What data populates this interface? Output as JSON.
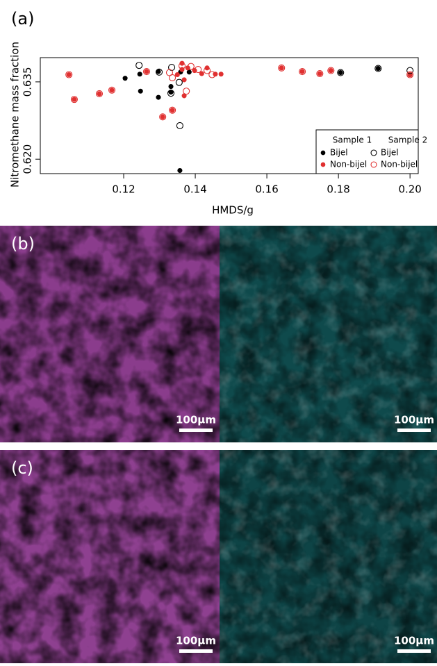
{
  "chart_data": {
    "type": "scatter",
    "panel_label": "(a)",
    "x_label": "HMDS/g",
    "y_label": "Nitromethane mass fraction",
    "xlim": [
      0.0967,
      0.2023
    ],
    "ylim": [
      0.6172,
      0.6397
    ],
    "xticks": [
      0.12,
      0.14,
      0.16,
      0.18,
      {
        "value": 0.2,
        "label": "0.20"
      }
    ],
    "yticks": [
      {
        "value": 0.62,
        "label": "0.620"
      },
      0.635
    ],
    "legend_groups": [
      "Sample 1",
      "Sample 2"
    ],
    "legend_position": "lower right",
    "series": [
      {
        "name": "Bijel",
        "color": "#000000",
        "marker": "filled",
        "x": [
          0.1245,
          0.1297,
          0.1247,
          0.1332,
          0.1297,
          0.1359,
          0.1383,
          0.2,
          0.1911,
          0.1806,
          0.1357,
          0.1332,
          0.1204
        ],
        "y": [
          0.6365,
          0.637,
          0.6332,
          0.6341,
          0.632,
          0.6369,
          0.6369,
          0.6364,
          0.6376,
          0.6368,
          0.6178,
          0.633,
          0.6357
        ]
      },
      {
        "name": "Non-bijel",
        "color": "#e03030",
        "marker": "filled",
        "x": [
          0.1047,
          0.1062,
          0.1132,
          0.1167,
          0.1264,
          0.1309,
          0.1336,
          0.1369,
          0.1641,
          0.1699,
          0.1748,
          0.1779,
          0.2,
          0.1363,
          0.1363,
          0.1379,
          0.1398,
          0.1418,
          0.1433,
          0.1456,
          0.1472,
          0.1369,
          0.135
        ],
        "y": [
          0.6364,
          0.6316,
          0.6327,
          0.6334,
          0.637,
          0.6282,
          0.6295,
          0.6323,
          0.6377,
          0.637,
          0.6366,
          0.6372,
          0.6364,
          0.6386,
          0.6374,
          0.6377,
          0.6372,
          0.6366,
          0.6377,
          0.6365,
          0.6365,
          0.6354,
          0.6364
        ]
      },
      {
        "name": "Bijel",
        "color": "#000000",
        "marker": "open",
        "x": [
          0.1243,
          0.1299,
          0.1334,
          0.1357,
          0.1806,
          0.1911,
          0.2,
          0.1355,
          0.1332
        ],
        "y": [
          0.6382,
          0.6369,
          0.6378,
          0.6265,
          0.6368,
          0.6376,
          0.6372,
          0.6349,
          0.6328
        ]
      },
      {
        "name": "Non-bijel",
        "color": "#e03030",
        "marker": "open",
        "x": [
          0.1047,
          0.1062,
          0.1132,
          0.1167,
          0.1264,
          0.1309,
          0.1336,
          0.1375,
          0.1641,
          0.1699,
          0.1748,
          0.1779,
          0.2,
          0.1328,
          0.1363,
          0.1388,
          0.1408,
          0.1433,
          0.1447,
          0.1336
        ],
        "y": [
          0.6364,
          0.6316,
          0.6327,
          0.6334,
          0.637,
          0.6282,
          0.6295,
          0.6332,
          0.6377,
          0.637,
          0.6366,
          0.6372,
          0.6364,
          0.6368,
          0.6381,
          0.638,
          0.6374,
          0.6372,
          0.6364,
          0.6358
        ]
      }
    ]
  },
  "panels": [
    {
      "label": "(b)",
      "scale_bars": [
        "100µm",
        "100µm"
      ]
    },
    {
      "label": "(c)",
      "scale_bars": [
        "100µm",
        "100µm"
      ]
    }
  ]
}
